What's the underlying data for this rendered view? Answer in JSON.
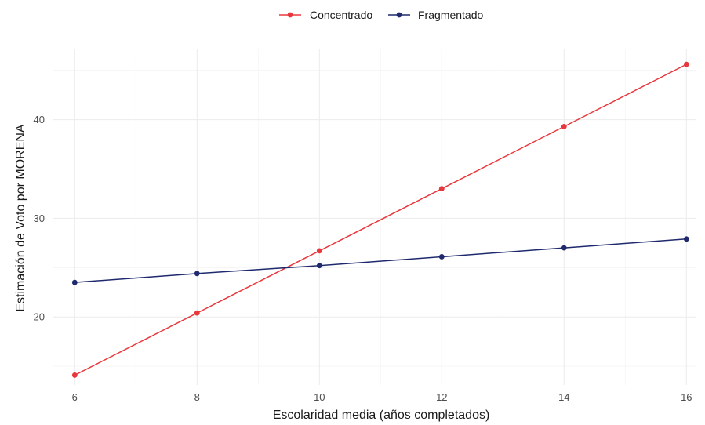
{
  "chart_data": {
    "type": "line",
    "xlabel": "Escolaridad media (años completados)",
    "ylabel": "Estimación de Voto por MORENA",
    "x": [
      6,
      8,
      10,
      12,
      14,
      16
    ],
    "xticks": [
      6,
      8,
      10,
      12,
      14,
      16
    ],
    "yticks": [
      20,
      30,
      40
    ],
    "xlim": [
      5.65,
      16.15
    ],
    "ylim": [
      13.1,
      47.2
    ],
    "grid": true,
    "legend_position": "top",
    "series": [
      {
        "name": "Concentrado",
        "color": "#e8383d",
        "values": [
          14.1,
          20.4,
          26.7,
          33.0,
          39.3,
          45.6
        ]
      },
      {
        "name": "Fragmentado",
        "color": "#1f2a6e",
        "values": [
          23.5,
          24.4,
          25.2,
          26.1,
          27.0,
          27.9
        ]
      }
    ]
  }
}
